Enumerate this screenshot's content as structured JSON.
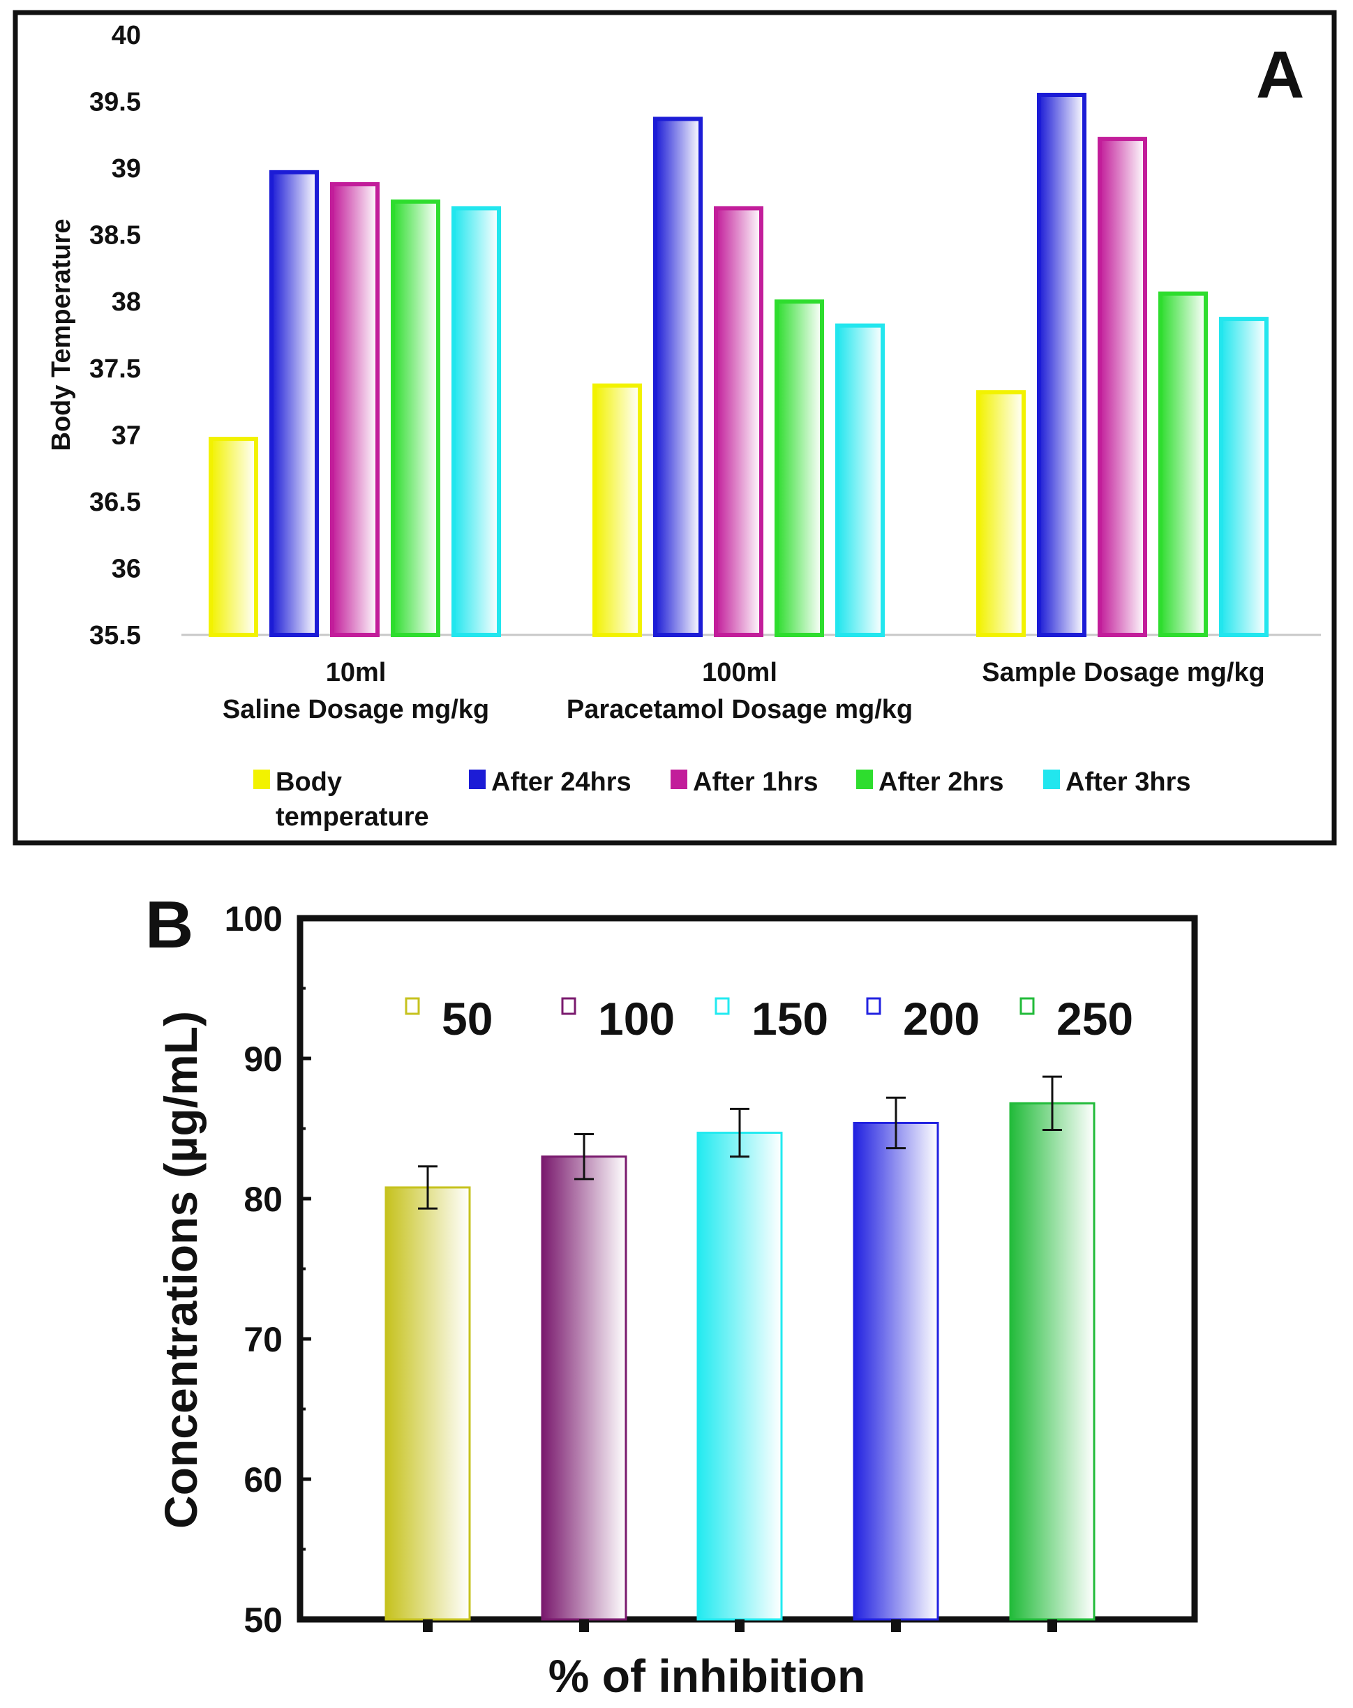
{
  "panel_a": {
    "label": "A",
    "legend_line2": "temperature",
    "chart_data": {
      "type": "bar",
      "title": "",
      "ylabel": "Body Temperature",
      "xlabel": "",
      "ylim": [
        35.5,
        40
      ],
      "yticks": [
        "35.5",
        "36",
        "36.5",
        "37",
        "37.5",
        "38",
        "38.5",
        "39",
        "39.5",
        "40"
      ],
      "categories": [
        [
          "10ml",
          "Saline Dosage mg/kg"
        ],
        [
          "100ml",
          "Paracetamol Dosage mg/kg"
        ],
        [
          "Sample Dosage mg/kg"
        ]
      ],
      "series": [
        {
          "name": "Body",
          "color": "#f2f200",
          "values": [
            36.97,
            37.37,
            37.32
          ]
        },
        {
          "name": "After 24hrs",
          "color": "#1c1cd6",
          "values": [
            38.97,
            39.37,
            39.55
          ]
        },
        {
          "name": "After 1hrs",
          "color": "#c21d9a",
          "values": [
            38.88,
            38.7,
            39.22
          ]
        },
        {
          "name": "After 2hrs",
          "color": "#2edd2e",
          "values": [
            38.75,
            38.0,
            38.06
          ]
        },
        {
          "name": "After 3hrs",
          "color": "#22e6ee",
          "values": [
            38.7,
            37.82,
            37.87
          ]
        }
      ],
      "legend_position": "bottom"
    }
  },
  "panel_b": {
    "label": "B",
    "chart_data": {
      "type": "bar",
      "title": "",
      "ylabel": "Concentrations (µg/mL)",
      "xlabel": "% of inhibition",
      "ylim": [
        50,
        100
      ],
      "yticks": [
        "50",
        "60",
        "70",
        "80",
        "90",
        "100"
      ],
      "categories": [
        "50",
        "100",
        "150",
        "200",
        "250"
      ],
      "values": [
        80.8,
        83.0,
        84.7,
        85.4,
        86.8
      ],
      "errors": [
        1.5,
        1.6,
        1.7,
        1.8,
        1.9
      ],
      "colors": [
        "#c6c21e",
        "#7a1a6e",
        "#22eaf0",
        "#2222e0",
        "#22bb3a"
      ],
      "legend_position": "top"
    }
  }
}
